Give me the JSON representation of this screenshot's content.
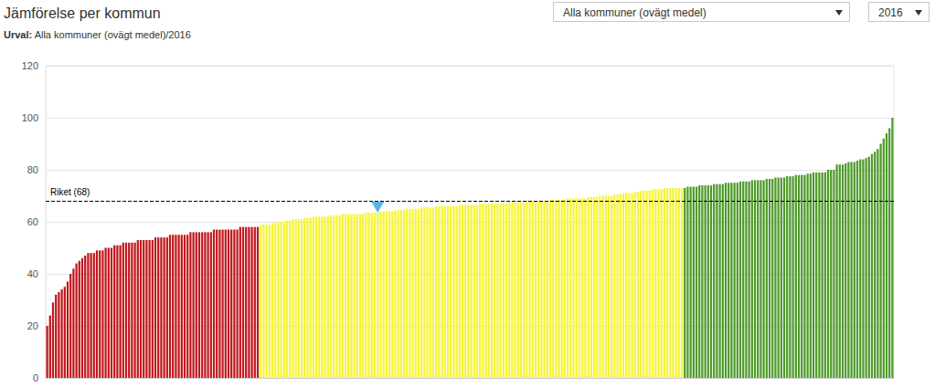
{
  "chart_data": {
    "type": "bar",
    "title": "Jämförelse per kommun",
    "subtitle": {
      "label": "Urval:",
      "text": "Alla kommuner (ovägt medel)/2016"
    },
    "controls": [
      "Alla kommuner (ovägt medel)",
      "2016"
    ],
    "reference_line": {
      "label": "Riket (68)",
      "value": 68
    },
    "highlight_index": 113,
    "highlight_color": "#5bb4e5",
    "categories": [
      null,
      null,
      null,
      null,
      null,
      null,
      null,
      null,
      null,
      null,
      null,
      null,
      null,
      null,
      null,
      null,
      null,
      null,
      null,
      null,
      null,
      null,
      null,
      null,
      null,
      null,
      null,
      null,
      null,
      null,
      null,
      null,
      null,
      null,
      null,
      null,
      null,
      null,
      null,
      null,
      null,
      null,
      null,
      null,
      null,
      null,
      null,
      null,
      null,
      null,
      null,
      null,
      null,
      null,
      null,
      null,
      null,
      null,
      null,
      null,
      null,
      null,
      null,
      null,
      null,
      null,
      null,
      null,
      null,
      null,
      null,
      null,
      null,
      null,
      null,
      null,
      null,
      null,
      null,
      null,
      null,
      null,
      null,
      null,
      null,
      null,
      null,
      null,
      null,
      null,
      null,
      null,
      null,
      null,
      null,
      null,
      null,
      null,
      null,
      null,
      null,
      null,
      null,
      null,
      null,
      null,
      null,
      null,
      null,
      null,
      null,
      null,
      null,
      null,
      null,
      null,
      null,
      null,
      null,
      null,
      null,
      null,
      null,
      null,
      null,
      null,
      null,
      null,
      null,
      null,
      null,
      null,
      null,
      null,
      null,
      null,
      null,
      null,
      null,
      null,
      null,
      null,
      null,
      null,
      null,
      null,
      null,
      null,
      null,
      null,
      null,
      null,
      null,
      null,
      null,
      null,
      null,
      null,
      null,
      null,
      null,
      null,
      null,
      null,
      null,
      null,
      null,
      null,
      null,
      null,
      null,
      null,
      null,
      null,
      null,
      null,
      null,
      null,
      null,
      null,
      null,
      null,
      null,
      null,
      null,
      null,
      null,
      null,
      null,
      null,
      null,
      null,
      null,
      null,
      null,
      null,
      null,
      null,
      null,
      null,
      null,
      null,
      null,
      null,
      null,
      null,
      null,
      null,
      null,
      null,
      null,
      null,
      null,
      null,
      null,
      null,
      null,
      null,
      null,
      null,
      null,
      null,
      null,
      null,
      null,
      null,
      null,
      null,
      null,
      null,
      null,
      null,
      null,
      null,
      null,
      null,
      null,
      null,
      null,
      null,
      null,
      null,
      null,
      null,
      null,
      null,
      null,
      null,
      null,
      null,
      null,
      null,
      null,
      null,
      null,
      null,
      null,
      null,
      null,
      null,
      null,
      null,
      null,
      null,
      null,
      null,
      null,
      null,
      null,
      null,
      null,
      null,
      null,
      null,
      null,
      null,
      null,
      null,
      null,
      null,
      null,
      null,
      null,
      null,
      null,
      null,
      null,
      null,
      null,
      null
    ],
    "values": [
      20,
      24,
      29,
      32,
      33,
      34,
      35,
      37,
      40,
      42,
      44,
      45,
      46,
      47,
      48,
      48,
      48,
      49,
      49,
      49,
      50,
      50,
      50,
      51,
      51,
      51,
      52,
      52,
      52,
      52,
      52,
      53,
      53,
      53,
      53,
      53,
      53,
      54,
      54,
      54,
      54,
      54,
      55,
      55,
      55,
      55,
      55,
      55,
      55,
      56,
      56,
      56,
      56,
      56,
      56,
      56,
      56,
      57,
      57,
      57,
      57,
      57,
      57,
      57,
      57,
      57,
      58,
      58,
      58,
      58,
      58,
      58,
      58,
      58.5,
      59,
      59,
      59,
      59.5,
      59.5,
      60,
      60,
      60,
      60.5,
      60.5,
      61,
      61,
      61,
      61,
      61.5,
      61.5,
      61.5,
      62,
      62,
      62,
      62,
      62,
      62,
      62.5,
      62.5,
      62.5,
      62.5,
      63,
      63,
      63,
      63,
      63,
      63,
      63,
      63,
      63.5,
      63.5,
      63.5,
      63.5,
      63.5,
      64,
      64,
      64,
      64,
      64,
      64.5,
      64.5,
      64.5,
      64.5,
      65,
      65,
      65,
      65,
      65,
      65.5,
      65.5,
      65.5,
      65.5,
      65.5,
      66,
      66,
      66,
      66,
      66,
      66,
      66,
      66,
      66.5,
      66.5,
      66.5,
      66.5,
      66.5,
      66.5,
      66.5,
      67,
      67,
      67,
      67,
      67,
      67,
      67,
      67,
      67,
      67,
      67.5,
      67.5,
      67.5,
      67.5,
      67.5,
      67.5,
      68,
      68,
      68,
      68,
      68,
      68,
      68,
      68,
      68.5,
      68.5,
      68.5,
      68.5,
      68.5,
      68.5,
      69,
      69,
      69,
      69,
      69,
      69,
      69,
      69.5,
      69.5,
      69.5,
      69.5,
      70,
      70,
      70,
      70,
      70,
      70.5,
      70.5,
      70.5,
      71,
      71,
      71,
      71,
      71.5,
      71.5,
      72,
      72,
      72,
      72,
      72.5,
      72.5,
      72.5,
      72.5,
      73,
      73,
      73,
      73,
      73,
      73,
      73,
      73,
      73.5,
      73.5,
      73.5,
      73.5,
      74,
      74,
      74,
      74,
      74,
      74.5,
      74.5,
      74.5,
      74.5,
      75,
      75,
      75,
      75,
      75,
      75.5,
      75.5,
      75.5,
      75.5,
      76,
      76,
      76,
      76,
      76,
      76.5,
      76.5,
      76.5,
      77,
      77,
      77,
      77,
      77.5,
      77.5,
      77.5,
      78,
      78,
      78,
      78,
      78.5,
      78.5,
      79,
      79,
      79,
      79,
      79,
      80,
      80,
      80,
      82,
      82,
      82,
      82.5,
      83,
      83,
      83,
      83.5,
      84,
      84,
      84.5,
      85,
      86,
      87,
      88,
      90,
      92,
      94,
      96,
      100
    ],
    "colors": [
      "#c0171c",
      "#c0171c",
      "#c0171c",
      "#c0171c",
      "#c0171c",
      "#c0171c",
      "#c0171c",
      "#c0171c",
      "#c0171c",
      "#c0171c",
      "#c0171c",
      "#c0171c",
      "#c0171c",
      "#c0171c",
      "#c0171c",
      "#c0171c",
      "#c0171c",
      "#c0171c",
      "#c0171c",
      "#c0171c",
      "#c0171c",
      "#c0171c",
      "#c0171c",
      "#c0171c",
      "#c0171c",
      "#c0171c",
      "#c0171c",
      "#c0171c",
      "#c0171c",
      "#c0171c",
      "#c0171c",
      "#c0171c",
      "#c0171c",
      "#c0171c",
      "#c0171c",
      "#c0171c",
      "#c0171c",
      "#c0171c",
      "#c0171c",
      "#c0171c",
      "#c0171c",
      "#c0171c",
      "#c0171c",
      "#c0171c",
      "#c0171c",
      "#c0171c",
      "#c0171c",
      "#c0171c",
      "#c0171c",
      "#c0171c",
      "#c0171c",
      "#c0171c",
      "#c0171c",
      "#c0171c",
      "#c0171c",
      "#c0171c",
      "#c0171c",
      "#c0171c",
      "#c0171c",
      "#c0171c",
      "#c0171c",
      "#c0171c",
      "#c0171c",
      "#c0171c",
      "#c0171c",
      "#c0171c",
      "#c0171c",
      "#c0171c",
      "#c0171c",
      "#c0171c",
      "#c0171c",
      "#c0171c",
      "#c0171c",
      "#f5f536",
      "#f5f536",
      "#f5f536",
      "#f5f536",
      "#f5f536",
      "#f5f536",
      "#f5f536",
      "#f5f536",
      "#f5f536",
      "#f5f536",
      "#f5f536",
      "#f5f536",
      "#f5f536",
      "#f5f536",
      "#f5f536",
      "#f5f536",
      "#f5f536",
      "#f5f536",
      "#f5f536",
      "#f5f536",
      "#f5f536",
      "#f5f536",
      "#f5f536",
      "#f5f536",
      "#f5f536",
      "#f5f536",
      "#f5f536",
      "#f5f536",
      "#f5f536",
      "#f5f536",
      "#f5f536",
      "#f5f536",
      "#f5f536",
      "#f5f536",
      "#f5f536",
      "#f5f536",
      "#f5f536",
      "#f5f536",
      "#f5f536",
      "#f5f536",
      "#f5f536",
      "#f5f536",
      "#f5f536",
      "#f5f536",
      "#f5f536",
      "#f5f536",
      "#f5f536",
      "#f5f536",
      "#f5f536",
      "#f5f536",
      "#f5f536",
      "#f5f536",
      "#f5f536",
      "#f5f536",
      "#f5f536",
      "#f5f536",
      "#f5f536",
      "#f5f536",
      "#f5f536",
      "#f5f536",
      "#f5f536",
      "#f5f536",
      "#f5f536",
      "#f5f536",
      "#f5f536",
      "#f5f536",
      "#f5f536",
      "#f5f536",
      "#f5f536",
      "#f5f536",
      "#f5f536",
      "#f5f536",
      "#f5f536",
      "#f5f536",
      "#f5f536",
      "#f5f536",
      "#f5f536",
      "#f5f536",
      "#f5f536",
      "#f5f536",
      "#f5f536",
      "#f5f536",
      "#f5f536",
      "#f5f536",
      "#f5f536",
      "#f5f536",
      "#f5f536",
      "#f5f536",
      "#f5f536",
      "#f5f536",
      "#f5f536",
      "#f5f536",
      "#f5f536",
      "#f5f536",
      "#f5f536",
      "#f5f536",
      "#f5f536",
      "#f5f536",
      "#f5f536",
      "#f5f536",
      "#f5f536",
      "#f5f536",
      "#f5f536",
      "#f5f536",
      "#f5f536",
      "#f5f536",
      "#f5f536",
      "#f5f536",
      "#f5f536",
      "#f5f536",
      "#f5f536",
      "#f5f536",
      "#f5f536",
      "#f5f536",
      "#f5f536",
      "#f5f536",
      "#f5f536",
      "#f5f536",
      "#f5f536",
      "#f5f536",
      "#f5f536",
      "#f5f536",
      "#f5f536",
      "#f5f536",
      "#f5f536",
      "#f5f536",
      "#f5f536",
      "#f5f536",
      "#f5f536",
      "#f5f536",
      "#f5f536",
      "#f5f536",
      "#f5f536",
      "#f5f536",
      "#f5f536",
      "#f5f536",
      "#f5f536",
      "#f5f536",
      "#f5f536",
      "#f5f536",
      "#f5f536",
      "#f5f536",
      "#f5f536",
      "#f5f536",
      "#f5f536",
      "#4e9a2a",
      "#4e9a2a",
      "#4e9a2a",
      "#4e9a2a",
      "#4e9a2a",
      "#4e9a2a",
      "#4e9a2a",
      "#4e9a2a",
      "#4e9a2a",
      "#4e9a2a",
      "#4e9a2a",
      "#4e9a2a",
      "#4e9a2a",
      "#4e9a2a",
      "#4e9a2a",
      "#4e9a2a",
      "#4e9a2a",
      "#4e9a2a",
      "#4e9a2a",
      "#4e9a2a",
      "#4e9a2a",
      "#4e9a2a",
      "#4e9a2a",
      "#4e9a2a",
      "#4e9a2a",
      "#4e9a2a",
      "#4e9a2a",
      "#4e9a2a",
      "#4e9a2a",
      "#4e9a2a",
      "#4e9a2a",
      "#4e9a2a",
      "#4e9a2a",
      "#4e9a2a",
      "#4e9a2a",
      "#4e9a2a",
      "#4e9a2a",
      "#4e9a2a",
      "#4e9a2a",
      "#4e9a2a",
      "#4e9a2a",
      "#4e9a2a",
      "#4e9a2a",
      "#4e9a2a",
      "#4e9a2a",
      "#4e9a2a",
      "#4e9a2a",
      "#4e9a2a",
      "#4e9a2a",
      "#4e9a2a",
      "#4e9a2a",
      "#4e9a2a",
      "#4e9a2a",
      "#4e9a2a",
      "#4e9a2a",
      "#4e9a2a",
      "#4e9a2a",
      "#4e9a2a",
      "#4e9a2a",
      "#4e9a2a",
      "#4e9a2a",
      "#4e9a2a",
      "#4e9a2a",
      "#4e9a2a",
      "#4e9a2a",
      "#4e9a2a",
      "#4e9a2a",
      "#4e9a2a",
      "#4e9a2a",
      "#4e9a2a",
      "#4e9a2a",
      "#4e9a2a"
    ],
    "ylim": [
      0,
      120
    ],
    "yticks": [
      0,
      20,
      40,
      60,
      80,
      100,
      120
    ],
    "grid": true,
    "tick_labels": "y"
  }
}
